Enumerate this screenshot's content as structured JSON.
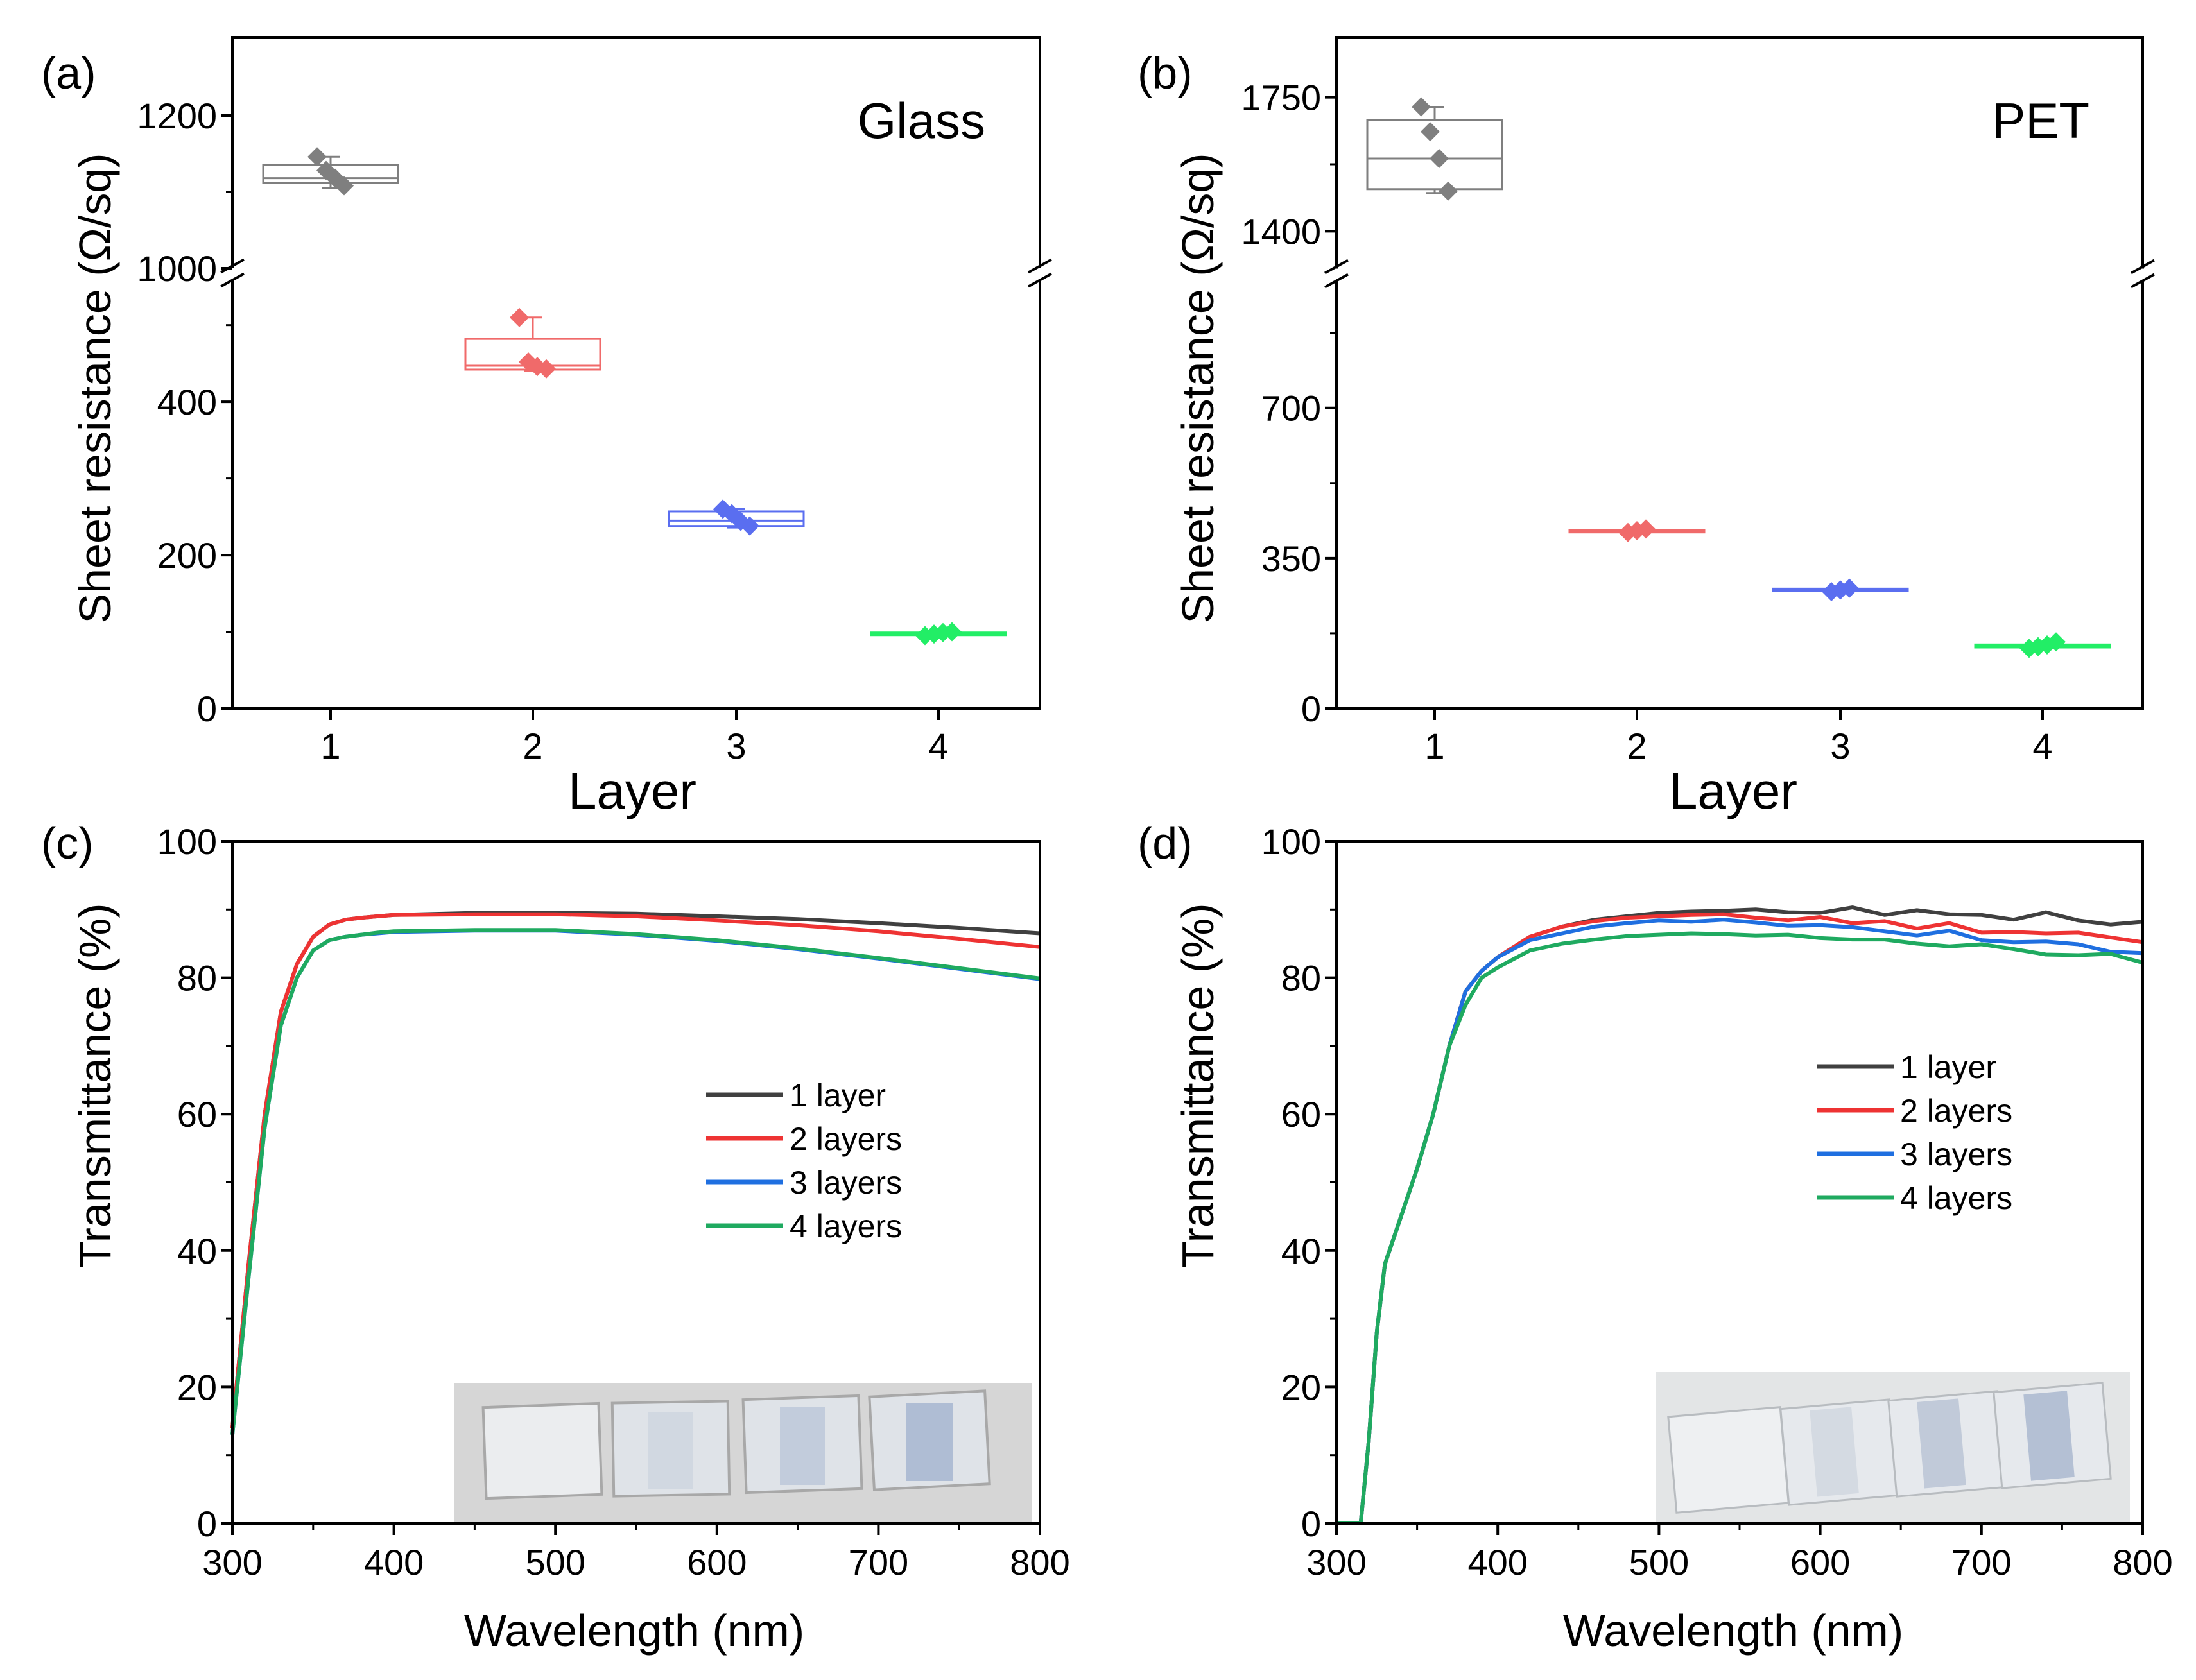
{
  "chart_data": [
    {
      "panel": "(a)",
      "type": "box",
      "annotation": "Glass",
      "xlabel": "Layer",
      "ylabel": "Sheet resistance (Ω/sq)",
      "categories": [
        "1",
        "2",
        "3",
        "4"
      ],
      "broken_axis": true,
      "y_lower_range": [
        0,
        560
      ],
      "y_upper_range": [
        1000,
        1200
      ],
      "y_lower_ticks": [
        "0",
        "200",
        "400"
      ],
      "y_upper_ticks": [
        "1000",
        "1200"
      ],
      "series": [
        {
          "category": "1",
          "color": "#7f7f7f",
          "box": [
            1112,
            1118,
            1135
          ],
          "whisker": [
            1105,
            1146
          ],
          "points": [
            1146,
            1128,
            1118,
            1108
          ]
        },
        {
          "category": "2",
          "color": "#f06a6a",
          "box": [
            442,
            447,
            482
          ],
          "whisker": [
            440,
            510
          ],
          "points": [
            510,
            452,
            446,
            443
          ]
        },
        {
          "category": "3",
          "color": "#5a6ef0",
          "box": [
            238,
            245,
            257
          ],
          "whisker": [
            236,
            260
          ],
          "points": [
            260,
            254,
            244,
            238
          ]
        },
        {
          "category": "4",
          "color": "#22ee66",
          "box": [
            96,
            97,
            99
          ],
          "whisker": [
            95,
            100
          ],
          "points": [
            95,
            97,
            99,
            100
          ]
        }
      ]
    },
    {
      "panel": "(b)",
      "type": "box",
      "annotation": "PET",
      "xlabel": "Layer",
      "ylabel": "Sheet resistance (Ω/sq)",
      "categories": [
        "1",
        "2",
        "3",
        "4"
      ],
      "broken_axis": true,
      "y_lower_range": [
        0,
        1000
      ],
      "y_upper_range": [
        1300,
        1850
      ],
      "y_lower_ticks": [
        "0",
        "350",
        "700"
      ],
      "y_upper_ticks": [
        "1400",
        "1750"
      ],
      "series": [
        {
          "category": "1",
          "color": "#7f7f7f",
          "box": [
            1510,
            1590,
            1690
          ],
          "whisker": [
            1500,
            1725
          ],
          "points": [
            1725,
            1660,
            1590,
            1505
          ]
        },
        {
          "category": "2",
          "color": "#f06a6a",
          "box": [
            412,
            414,
            416
          ],
          "whisker": [
            410,
            418
          ],
          "points": [
            410,
            414,
            418
          ]
        },
        {
          "category": "3",
          "color": "#5a6ef0",
          "box": [
            275,
            277,
            279
          ],
          "whisker": [
            272,
            280
          ],
          "points": [
            272,
            276,
            280
          ]
        },
        {
          "category": "4",
          "color": "#22ee66",
          "box": [
            142,
            145,
            149
          ],
          "whisker": [
            140,
            155
          ],
          "points": [
            140,
            144,
            148,
            155
          ]
        }
      ]
    },
    {
      "panel": "(c)",
      "type": "line",
      "xlabel": "Wavelength (nm)",
      "ylabel": "Transmittance (%)",
      "xlim": [
        300,
        800
      ],
      "ylim": [
        0,
        100
      ],
      "xticks": [
        "300",
        "400",
        "500",
        "600",
        "700",
        "800"
      ],
      "yticks": [
        "0",
        "20",
        "40",
        "60",
        "80",
        "100"
      ],
      "legend": "center-right",
      "series": [
        {
          "name": "1 layer",
          "color": "#404040",
          "x": [
            300,
            310,
            320,
            330,
            340,
            350,
            360,
            370,
            380,
            390,
            400,
            450,
            500,
            550,
            600,
            650,
            700,
            750,
            800
          ],
          "y": [
            14,
            38,
            60,
            75,
            82,
            86,
            87.8,
            88.5,
            88.8,
            89,
            89.2,
            89.5,
            89.5,
            89.4,
            89,
            88.6,
            88,
            87.3,
            86.5
          ]
        },
        {
          "name": "2 layers",
          "color": "#ee3333",
          "x": [
            300,
            310,
            320,
            330,
            340,
            350,
            360,
            370,
            380,
            390,
            400,
            450,
            500,
            550,
            600,
            650,
            700,
            750,
            800
          ],
          "y": [
            14,
            38,
            60,
            75,
            82,
            86,
            87.8,
            88.5,
            88.8,
            89,
            89.2,
            89.3,
            89.3,
            89,
            88.4,
            87.7,
            86.8,
            85.7,
            84.5
          ]
        },
        {
          "name": "3 layers",
          "color": "#1f6fe0",
          "x": [
            300,
            310,
            320,
            330,
            340,
            350,
            360,
            370,
            380,
            390,
            400,
            450,
            500,
            550,
            600,
            650,
            700,
            750,
            800
          ],
          "y": [
            13,
            36,
            58,
            73,
            80,
            84,
            85.5,
            86,
            86.3,
            86.5,
            86.7,
            86.9,
            86.9,
            86.3,
            85.4,
            84.2,
            82.8,
            81.3,
            79.8
          ]
        },
        {
          "name": "4 layers",
          "color": "#1faa60",
          "x": [
            300,
            310,
            320,
            330,
            340,
            350,
            360,
            370,
            380,
            390,
            400,
            450,
            500,
            550,
            600,
            650,
            700,
            750,
            800
          ],
          "y": [
            13,
            36,
            58,
            73,
            80,
            84,
            85.5,
            86,
            86.3,
            86.6,
            86.8,
            87,
            87,
            86.4,
            85.5,
            84.3,
            82.9,
            81.4,
            79.9
          ]
        }
      ]
    },
    {
      "panel": "(d)",
      "type": "line",
      "xlabel": "Wavelength (nm)",
      "ylabel": "Transmittance (%)",
      "xlim": [
        300,
        800
      ],
      "ylim": [
        0,
        100
      ],
      "xticks": [
        "300",
        "400",
        "500",
        "600",
        "700",
        "800"
      ],
      "yticks": [
        "0",
        "20",
        "40",
        "60",
        "80",
        "100"
      ],
      "legend": "center-right",
      "series": [
        {
          "name": "1 layer",
          "color": "#404040",
          "x": [
            300,
            315,
            320,
            325,
            330,
            340,
            350,
            360,
            370,
            380,
            390,
            400,
            420,
            440,
            460,
            480,
            500,
            520,
            540,
            560,
            580,
            600,
            620,
            640,
            660,
            680,
            700,
            720,
            740,
            760,
            780,
            800
          ],
          "y": [
            0,
            0,
            12,
            28,
            38,
            45,
            52,
            60,
            70,
            78,
            81,
            83,
            86,
            87.5,
            88.5,
            89,
            89.5,
            89.7,
            89.8,
            90,
            89.6,
            89.5,
            90.3,
            89.2,
            89.9,
            89.3,
            89.2,
            88.5,
            89.6,
            88.4,
            87.8,
            88.2
          ]
        },
        {
          "name": "2 layers",
          "color": "#ee3333",
          "x": [
            300,
            315,
            320,
            325,
            330,
            340,
            350,
            360,
            370,
            380,
            390,
            400,
            420,
            440,
            460,
            480,
            500,
            520,
            540,
            560,
            580,
            600,
            620,
            640,
            660,
            680,
            700,
            720,
            740,
            760,
            780,
            800
          ],
          "y": [
            0,
            0,
            12,
            28,
            38,
            45,
            52,
            60,
            70,
            78,
            81,
            83,
            86,
            87.5,
            88.3,
            88.8,
            89,
            89.2,
            89.3,
            88.8,
            88.4,
            88.9,
            88,
            88.3,
            87.2,
            88,
            86.6,
            86.7,
            86.5,
            86.6,
            85.9,
            85.2
          ]
        },
        {
          "name": "3 layers",
          "color": "#1f6fe0",
          "x": [
            300,
            315,
            320,
            325,
            330,
            340,
            350,
            360,
            370,
            380,
            390,
            400,
            420,
            440,
            460,
            480,
            500,
            520,
            540,
            560,
            580,
            600,
            620,
            640,
            660,
            680,
            700,
            720,
            740,
            760,
            780,
            800
          ],
          "y": [
            0,
            0,
            12,
            28,
            38,
            45,
            52,
            60,
            70,
            78,
            81,
            83,
            85.5,
            86.5,
            87.5,
            88,
            88.4,
            88.2,
            88.5,
            88.1,
            87.6,
            87.7,
            87.4,
            86.8,
            86.2,
            86.9,
            85.5,
            85.2,
            85.3,
            84.9,
            83.8,
            83.6
          ]
        },
        {
          "name": "4 layers",
          "color": "#1faa60",
          "x": [
            300,
            315,
            320,
            325,
            330,
            340,
            350,
            360,
            370,
            380,
            390,
            400,
            420,
            440,
            460,
            480,
            500,
            520,
            540,
            560,
            580,
            600,
            620,
            640,
            660,
            680,
            700,
            720,
            740,
            760,
            780,
            800
          ],
          "y": [
            0,
            0,
            12,
            28,
            38,
            45,
            52,
            60,
            70,
            76,
            80,
            81.5,
            84,
            85,
            85.6,
            86.1,
            86.3,
            86.5,
            86.4,
            86.2,
            86.3,
            85.8,
            85.6,
            85.6,
            85,
            84.6,
            84.9,
            84.2,
            83.4,
            83.3,
            83.5,
            82.2
          ]
        }
      ]
    }
  ]
}
